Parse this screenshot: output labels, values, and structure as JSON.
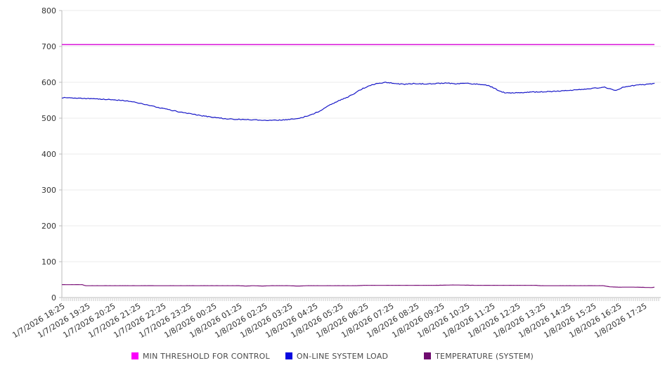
{
  "chart_data": {
    "type": "line",
    "title": "",
    "xlabel": "",
    "ylabel": "",
    "grid": "horizontal",
    "legend_position": "bottom",
    "axis_color": "#bbbbbb",
    "grid_color": "#ebebeb",
    "tick_label_color": "#333333",
    "x_axis": {
      "span_minutes": 1405,
      "minor_tick_minutes": 5,
      "hour_label_interval": 60,
      "labels": [
        "1/7/2026 18:25",
        "1/7/2026 19:25",
        "1/7/2026 20:25",
        "1/7/2026 21:25",
        "1/7/2026 22:25",
        "1/7/2026 23:25",
        "1/8/2026 00:25",
        "1/8/2026 01:25",
        "1/8/2026 02:25",
        "1/8/2026 03:25",
        "1/8/2026 04:25",
        "1/8/2026 05:25",
        "1/8/2026 06:25",
        "1/8/2026 07:25",
        "1/8/2026 08:25",
        "1/8/2026 09:25",
        "1/8/2026 10:25",
        "1/8/2026 11:25",
        "1/8/2026 12:25",
        "1/8/2026 13:25",
        "1/8/2026 14:25",
        "1/8/2026 15:25",
        "1/8/2026 16:25",
        "1/8/2026 17:25"
      ]
    },
    "y_axis": {
      "min": 0,
      "max": 800,
      "step": 100,
      "ticks": [
        0,
        100,
        200,
        300,
        400,
        500,
        600,
        700,
        800
      ]
    },
    "series": [
      {
        "name": "MIN THRESHOLD FOR CONTROL",
        "color": "#d911d9",
        "swatch_color": "#fb00fb",
        "width": 1.5,
        "jitter": 0,
        "points": [
          [
            0,
            705
          ],
          [
            1405,
            705
          ]
        ]
      },
      {
        "name": "ON-LINE SYSTEM LOAD",
        "color": "#1616c8",
        "swatch_color": "#0808e0",
        "width": 1.2,
        "jitter": 1.2,
        "points": [
          [
            0,
            557
          ],
          [
            25,
            556
          ],
          [
            50,
            555
          ],
          [
            75,
            554
          ],
          [
            100,
            553
          ],
          [
            125,
            551
          ],
          [
            140,
            550
          ],
          [
            160,
            547
          ],
          [
            180,
            543
          ],
          [
            200,
            538
          ],
          [
            220,
            532
          ],
          [
            240,
            527
          ],
          [
            260,
            522
          ],
          [
            285,
            516
          ],
          [
            310,
            511
          ],
          [
            335,
            506
          ],
          [
            360,
            502
          ],
          [
            385,
            499
          ],
          [
            410,
            497
          ],
          [
            435,
            496
          ],
          [
            460,
            495
          ],
          [
            485,
            494
          ],
          [
            512,
            494
          ],
          [
            535,
            496
          ],
          [
            555,
            498
          ],
          [
            570,
            502
          ],
          [
            592,
            510
          ],
          [
            612,
            520
          ],
          [
            637,
            538
          ],
          [
            660,
            550
          ],
          [
            680,
            560
          ],
          [
            695,
            570
          ],
          [
            712,
            582
          ],
          [
            728,
            590
          ],
          [
            745,
            596
          ],
          [
            767,
            600
          ],
          [
            790,
            597
          ],
          [
            812,
            594
          ],
          [
            835,
            597
          ],
          [
            860,
            595
          ],
          [
            885,
            596
          ],
          [
            910,
            598
          ],
          [
            935,
            596
          ],
          [
            960,
            597
          ],
          [
            980,
            595
          ],
          [
            1000,
            594
          ],
          [
            1012,
            590
          ],
          [
            1025,
            584
          ],
          [
            1038,
            575
          ],
          [
            1050,
            571
          ],
          [
            1065,
            570
          ],
          [
            1080,
            572
          ],
          [
            1095,
            571
          ],
          [
            1110,
            573
          ],
          [
            1130,
            573
          ],
          [
            1150,
            574
          ],
          [
            1170,
            575
          ],
          [
            1190,
            577
          ],
          [
            1210,
            578
          ],
          [
            1230,
            580
          ],
          [
            1250,
            582
          ],
          [
            1270,
            584
          ],
          [
            1288,
            586
          ],
          [
            1300,
            582
          ],
          [
            1310,
            577
          ],
          [
            1320,
            580
          ],
          [
            1332,
            587
          ],
          [
            1348,
            590
          ],
          [
            1365,
            592
          ],
          [
            1382,
            594
          ],
          [
            1398,
            596
          ],
          [
            1405,
            598
          ]
        ]
      },
      {
        "name": "TEMPERATURE (SYSTEM)",
        "color": "#7a1078",
        "swatch_color": "#6f0b6f",
        "width": 1.2,
        "jitter": 0.15,
        "points": [
          [
            0,
            36
          ],
          [
            48,
            36
          ],
          [
            56,
            33
          ],
          [
            150,
            33
          ],
          [
            250,
            33
          ],
          [
            350,
            33
          ],
          [
            420,
            33
          ],
          [
            435,
            32
          ],
          [
            455,
            33
          ],
          [
            475,
            32
          ],
          [
            495,
            33
          ],
          [
            540,
            33
          ],
          [
            560,
            32
          ],
          [
            580,
            33
          ],
          [
            700,
            33
          ],
          [
            715,
            34
          ],
          [
            800,
            34
          ],
          [
            880,
            34
          ],
          [
            930,
            35
          ],
          [
            980,
            34
          ],
          [
            1060,
            34
          ],
          [
            1125,
            34
          ],
          [
            1135,
            33
          ],
          [
            1200,
            33
          ],
          [
            1285,
            33
          ],
          [
            1298,
            30
          ],
          [
            1320,
            29
          ],
          [
            1360,
            29
          ],
          [
            1390,
            28
          ],
          [
            1400,
            28
          ],
          [
            1405,
            29
          ]
        ]
      }
    ]
  }
}
